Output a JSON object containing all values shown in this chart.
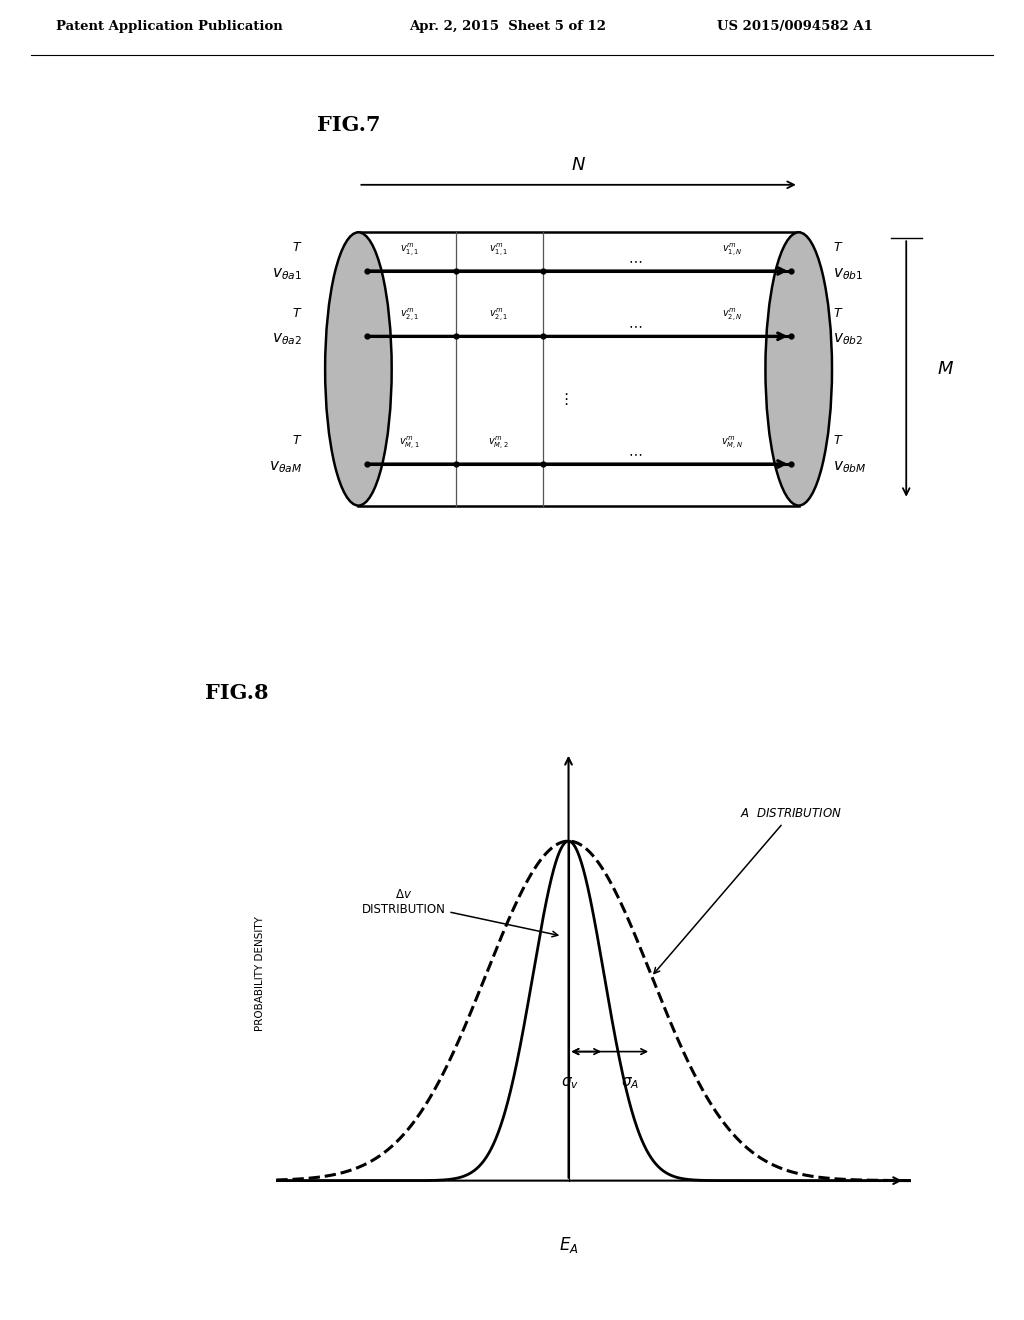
{
  "header_left": "Patent Application Publication",
  "header_mid": "Apr. 2, 2015  Sheet 5 of 12",
  "header_right": "US 2015/0094582 A1",
  "fig7_label": "FIG.7",
  "fig8_label": "FIG.8",
  "background_color": "#ffffff",
  "text_color": "#000000",
  "fig7": {
    "N_label": "N",
    "M_label": "M",
    "cell_labels": [
      [
        "v_{1,1}^{m}",
        "v_{1,1}^{m}",
        "v_{1,N}^{m}"
      ],
      [
        "v_{2,1}^{m}",
        "v_{2,1}^{m}",
        "v_{2,N}^{m}"
      ],
      [
        "v_{M,1}^{m}",
        "v_{M,2}^{m}",
        "v_{M,N}^{m}"
      ]
    ]
  },
  "fig8": {
    "narrow_sigma": 0.28,
    "wide_sigma": 0.65,
    "mean": 0.0
  }
}
